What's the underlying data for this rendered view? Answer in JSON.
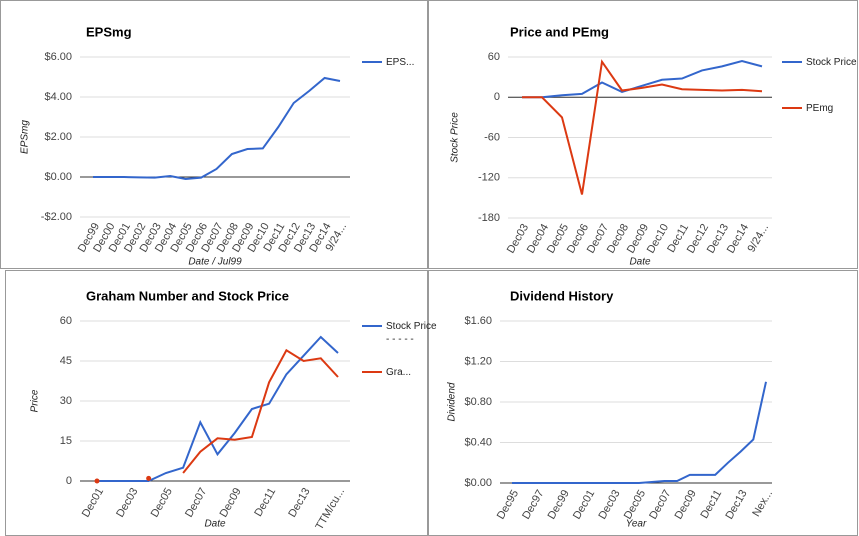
{
  "chart_data": [
    {
      "type": "line",
      "title": "EPSmg",
      "y_label": "EPSmg",
      "x_label": "Date / Jul99",
      "categories": [
        "Dec99",
        "Dec00",
        "Dec01",
        "Dec02",
        "Dec03",
        "Dec04",
        "Dec05",
        "Dec06",
        "Dec07",
        "Dec08",
        "Dec09",
        "Dec10",
        "Dec11",
        "Dec12",
        "Dec13",
        "Dec14",
        "9/24..."
      ],
      "series": [
        {
          "name": "EPS...",
          "color": "#3366cc",
          "values": [
            0,
            0,
            0,
            -0.02,
            -0.03,
            0.05,
            -0.1,
            -0.03,
            0.4,
            1.15,
            1.4,
            1.43,
            2.5,
            3.7,
            4.3,
            4.95,
            4.8
          ]
        }
      ],
      "ylim": [
        -2,
        6
      ],
      "yticks": [
        {
          "value": -2,
          "label": "-$2.00"
        },
        {
          "value": 0,
          "label": "$0.00"
        },
        {
          "value": 2,
          "label": "$2.00"
        },
        {
          "value": 4,
          "label": "$4.00"
        },
        {
          "value": 6,
          "label": "$6.00"
        }
      ],
      "grid": true,
      "legend": "right"
    },
    {
      "type": "line",
      "title": "Price and PEmg",
      "y_label": "Stock Price",
      "x_label": "Date",
      "categories": [
        "Dec03",
        "Dec04",
        "Dec05",
        "Dec06",
        "Dec07",
        "Dec08",
        "Dec09",
        "Dec10",
        "Dec11",
        "Dec12",
        "Dec13",
        "Dec14",
        "9/24..."
      ],
      "series": [
        {
          "name": "Stock Price",
          "color": "#3366cc",
          "values": [
            0,
            0,
            3,
            5,
            22,
            8,
            17,
            26,
            28,
            40,
            46,
            54,
            46
          ]
        },
        {
          "name": "PEmg",
          "color": "#dc3912",
          "values": [
            0,
            0,
            -30,
            -145,
            53,
            10,
            14,
            19,
            12,
            11,
            10,
            11,
            9
          ]
        }
      ],
      "ylim": [
        -180,
        60
      ],
      "yticks": [
        -180,
        -120,
        -60,
        0,
        60
      ],
      "grid": true,
      "legend": "right"
    },
    {
      "type": "line",
      "title": "Graham Number and Stock Price",
      "y_label": "Price",
      "x_label": "Date",
      "categories": [
        "Dec01",
        null,
        "Dec03",
        null,
        "Dec05",
        null,
        "Dec07",
        null,
        "Dec09",
        null,
        "Dec11",
        null,
        "Dec13",
        null,
        "TTM/cu..."
      ],
      "series": [
        {
          "name": "Stock Price - - - - -",
          "color": "#3366cc",
          "values": [
            0,
            0,
            0,
            0,
            3,
            5,
            22,
            10,
            18,
            27,
            29,
            40,
            47,
            54,
            48
          ]
        },
        {
          "name": "Gra...",
          "color": "#dc3912",
          "values": [
            0,
            null,
            null,
            1,
            null,
            3,
            11,
            16,
            15.5,
            16.5,
            37,
            49,
            45,
            46,
            39
          ]
        }
      ],
      "ylim": [
        0,
        60
      ],
      "yticks": [
        0,
        15,
        30,
        45,
        60
      ],
      "grid": true,
      "legend": "right"
    },
    {
      "type": "line",
      "title": "Dividend History",
      "y_label": "Dividend",
      "x_label": "Year",
      "categories": [
        "Dec95",
        null,
        "Dec97",
        null,
        "Dec99",
        null,
        "Dec01",
        null,
        "Dec03",
        null,
        "Dec05",
        null,
        "Dec07",
        null,
        "Dec09",
        null,
        "Dec11",
        null,
        "Dec13",
        null,
        "Nex..."
      ],
      "series": [
        {
          "name": "Dividend",
          "color": "#3366cc",
          "values": [
            0,
            0,
            0,
            0,
            0,
            0,
            0,
            0,
            0,
            0,
            0,
            0.01,
            0.02,
            0.02,
            0.08,
            0.08,
            0.08,
            0.2,
            0.31,
            0.43,
            1.0
          ]
        }
      ],
      "ylim": [
        0,
        1.6
      ],
      "yticks": [
        {
          "value": 0,
          "label": "$0.00"
        },
        {
          "value": 0.4,
          "label": "$0.40"
        },
        {
          "value": 0.8,
          "label": "$0.80"
        },
        {
          "value": 1.2,
          "label": "$1.20"
        },
        {
          "value": 1.6,
          "label": "$1.60"
        }
      ],
      "grid": true,
      "legend": "none"
    }
  ]
}
